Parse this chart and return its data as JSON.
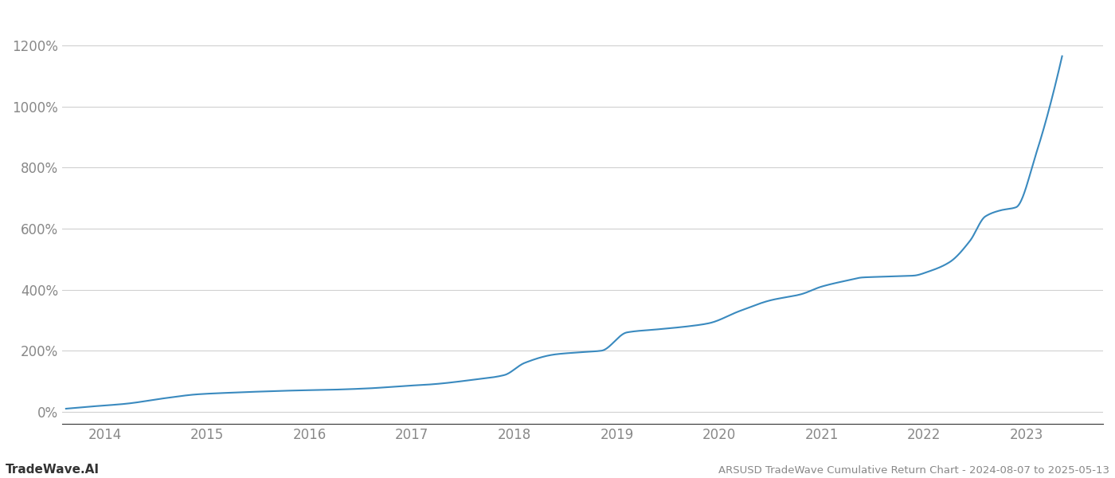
{
  "title": "ARSUSD TradeWave Cumulative Return Chart - 2024-08-07 to 2025-05-13",
  "watermark": "TradeWave.AI",
  "line_color": "#3a8abf",
  "background_color": "#ffffff",
  "grid_color": "#d0d0d0",
  "x_start_year": 2013.58,
  "x_end_year": 2023.75,
  "yticks": [
    0,
    200,
    400,
    600,
    800,
    1000,
    1200
  ],
  "ylim": [
    -40,
    1310
  ],
  "year_labels": [
    "2014",
    "2015",
    "2016",
    "2017",
    "2018",
    "2019",
    "2020",
    "2021",
    "2022",
    "2023"
  ],
  "data_years": [
    2013.62,
    2013.9,
    2014.2,
    2014.6,
    2014.9,
    2015.2,
    2015.6,
    2015.9,
    2016.2,
    2016.6,
    2016.9,
    2017.2,
    2017.6,
    2017.9,
    2018.1,
    2018.4,
    2018.65,
    2018.85,
    2019.1,
    2019.4,
    2019.7,
    2019.9,
    2020.2,
    2020.5,
    2020.8,
    2021.0,
    2021.25,
    2021.4,
    2021.55,
    2021.75,
    2021.9,
    2022.05,
    2022.25,
    2022.45,
    2022.6,
    2022.75,
    2022.9,
    2023.1,
    2023.35
  ],
  "data_values": [
    10,
    18,
    26,
    45,
    57,
    62,
    67,
    70,
    72,
    77,
    84,
    90,
    105,
    120,
    160,
    188,
    195,
    200,
    260,
    270,
    280,
    290,
    330,
    365,
    385,
    410,
    430,
    440,
    442,
    444,
    446,
    460,
    490,
    560,
    640,
    660,
    670,
    850,
    1165
  ]
}
